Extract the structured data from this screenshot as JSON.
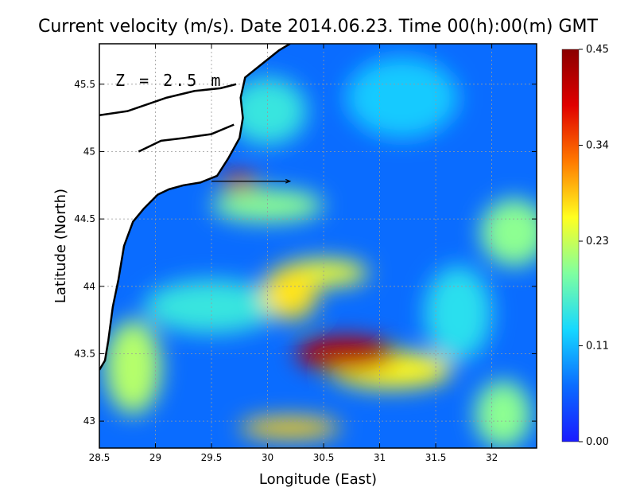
{
  "chart_data": {
    "type": "heatmap",
    "title": "Current velocity (m/s). Date 2014.06.23. Time 00(h):00(m) GMT",
    "annotation": "Z = 2.5 m",
    "xlabel": "Longitude (East)",
    "ylabel": "Latitude (North)",
    "xlim": [
      28.5,
      32.4
    ],
    "ylim": [
      42.8,
      45.8
    ],
    "x_ticks": [
      28.5,
      29,
      29.5,
      30,
      30.5,
      31,
      31.5,
      32
    ],
    "x_tick_labels": [
      "28.5",
      "29",
      "29.5",
      "30",
      "30.5",
      "31",
      "31.5",
      "32"
    ],
    "y_ticks": [
      43,
      43.5,
      44,
      44.5,
      45,
      45.5
    ],
    "y_tick_labels": [
      "43",
      "43.5",
      "44",
      "44.5",
      "45",
      "45.5"
    ],
    "grid": true,
    "colorbar": {
      "min": 0.0,
      "max": 0.45,
      "ticks": [
        0.0,
        0.11,
        0.23,
        0.34,
        0.45
      ],
      "tick_labels": [
        "0.00",
        "0.11",
        "0.23",
        "0.34",
        "0.45"
      ],
      "colors": [
        "#1a1aff",
        "#0a6cff",
        "#16d8ff",
        "#7fffa0",
        "#ffff20",
        "#ff7a00",
        "#e00000",
        "#8a0000"
      ]
    },
    "speed_features": [
      {
        "lon": 30.7,
        "lat": 43.5,
        "speed": 0.42,
        "rx": 0.45,
        "ry": 0.13
      },
      {
        "lon": 31.1,
        "lat": 43.38,
        "speed": 0.26,
        "rx": 0.55,
        "ry": 0.14
      },
      {
        "lon": 30.2,
        "lat": 43.95,
        "speed": 0.27,
        "rx": 0.25,
        "ry": 0.2
      },
      {
        "lon": 30.5,
        "lat": 44.1,
        "speed": 0.25,
        "rx": 0.4,
        "ry": 0.1
      },
      {
        "lon": 29.75,
        "lat": 44.78,
        "speed": 0.4,
        "rx": 0.18,
        "ry": 0.06
      },
      {
        "lon": 30.0,
        "lat": 44.6,
        "speed": 0.2,
        "rx": 0.5,
        "ry": 0.12
      },
      {
        "lon": 30.2,
        "lat": 42.95,
        "speed": 0.28,
        "rx": 0.45,
        "ry": 0.08
      },
      {
        "lon": 32.2,
        "lat": 44.4,
        "speed": 0.2,
        "rx": 0.3,
        "ry": 0.25
      },
      {
        "lon": 32.1,
        "lat": 43.05,
        "speed": 0.2,
        "rx": 0.25,
        "ry": 0.25
      },
      {
        "lon": 28.8,
        "lat": 43.4,
        "speed": 0.22,
        "rx": 0.25,
        "ry": 0.35
      },
      {
        "lon": 29.5,
        "lat": 43.85,
        "speed": 0.15,
        "rx": 0.6,
        "ry": 0.2
      },
      {
        "lon": 30.0,
        "lat": 45.3,
        "speed": 0.15,
        "rx": 0.35,
        "ry": 0.25
      },
      {
        "lon": 31.2,
        "lat": 45.4,
        "speed": 0.12,
        "rx": 0.5,
        "ry": 0.3
      },
      {
        "lon": 31.7,
        "lat": 43.8,
        "speed": 0.14,
        "rx": 0.3,
        "ry": 0.35
      }
    ],
    "coastline": [
      [
        [
          28.5,
          43.38
        ],
        [
          28.55,
          43.45
        ],
        [
          28.58,
          43.6
        ],
        [
          28.62,
          43.85
        ],
        [
          28.67,
          44.05
        ],
        [
          28.72,
          44.3
        ],
        [
          28.8,
          44.48
        ],
        [
          28.9,
          44.58
        ],
        [
          29.02,
          44.68
        ],
        [
          29.12,
          44.72
        ],
        [
          29.25,
          44.75
        ],
        [
          29.4,
          44.77
        ],
        [
          29.55,
          44.82
        ],
        [
          29.65,
          44.95
        ],
        [
          29.75,
          45.1
        ],
        [
          29.78,
          45.25
        ],
        [
          29.76,
          45.4
        ],
        [
          29.8,
          45.55
        ],
        [
          29.95,
          45.65
        ],
        [
          30.1,
          45.75
        ],
        [
          30.2,
          45.8
        ]
      ],
      [
        [
          28.85,
          45.0
        ],
        [
          29.05,
          45.08
        ],
        [
          29.25,
          45.1
        ],
        [
          29.5,
          45.13
        ],
        [
          29.7,
          45.2
        ]
      ],
      [
        [
          28.5,
          45.27
        ],
        [
          28.75,
          45.3
        ],
        [
          29.1,
          45.4
        ],
        [
          29.35,
          45.45
        ],
        [
          29.58,
          45.47
        ],
        [
          29.72,
          45.5
        ]
      ]
    ],
    "vectors": [
      {
        "lon": 29.5,
        "lat": 44.78,
        "u": 0.7,
        "v": 0.0
      }
    ]
  }
}
